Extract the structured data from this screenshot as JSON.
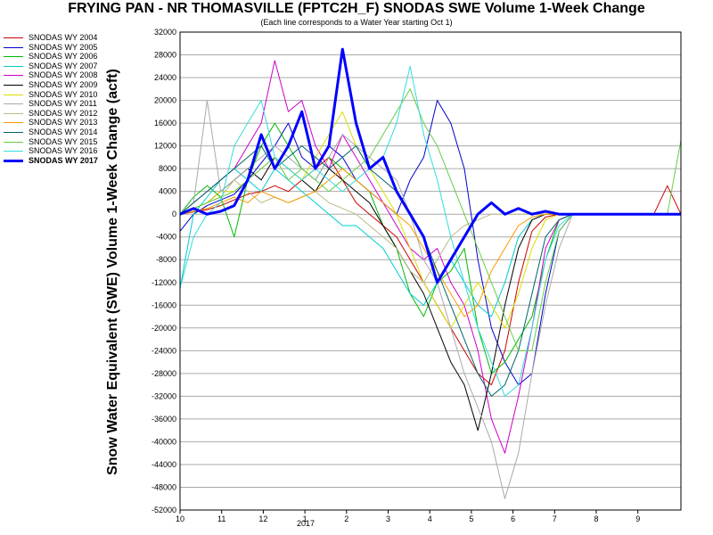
{
  "title": "FRYING PAN - NR THOMASVILLE (FPTC2H_F) SNODAS SWE Volume 1-Week Change",
  "subtitle": "(Each line corresponds to a Water Year starting Oct 1)",
  "chart_data": {
    "type": "line",
    "ylabel": "Snow Water Equivalent (SWE) Volume 1-Week Change (acft)",
    "xlabel": "",
    "ylim": [
      -52000,
      32000
    ],
    "yticks": [
      32000,
      28000,
      24000,
      20000,
      16000,
      12000,
      8000,
      4000,
      0,
      -4000,
      -8000,
      -12000,
      -16000,
      -20000,
      -24000,
      -28000,
      -32000,
      -36000,
      -40000,
      -44000,
      -48000,
      -52000
    ],
    "x_tick_labels": [
      "10",
      "11",
      "12",
      "1",
      "2",
      "3",
      "4",
      "5",
      "6",
      "7",
      "8",
      "9"
    ],
    "x_year_label": "2017",
    "grid": true,
    "legend_position": "left",
    "series": [
      {
        "name": "SNODAS WY 2004",
        "color": "#cc0000",
        "width": 1,
        "values": [
          0,
          400,
          800,
          1500,
          2500,
          3500,
          4000,
          5000,
          4000,
          6000,
          8000,
          10000,
          6000,
          2000,
          0,
          -2000,
          -4000,
          -8000,
          -12000,
          -16000,
          -20000,
          -24000,
          -28000,
          -30000,
          -24000,
          -12000,
          -3000,
          -500,
          0,
          0,
          0,
          0,
          0,
          0,
          0,
          0,
          5000,
          0
        ]
      },
      {
        "name": "SNODAS WY 2005",
        "color": "#0000cc",
        "width": 1,
        "values": [
          -3000,
          0,
          1500,
          2500,
          3500,
          6000,
          9000,
          12000,
          16000,
          10000,
          8000,
          12000,
          10000,
          6000,
          4000,
          2000,
          0,
          6000,
          10000,
          20000,
          16000,
          8000,
          -8000,
          -20000,
          -26000,
          -30000,
          -28000,
          -14000,
          -3000,
          0,
          0,
          0,
          0,
          0,
          0,
          0,
          0,
          0
        ]
      },
      {
        "name": "SNODAS WY 2006",
        "color": "#00bb00",
        "width": 1,
        "values": [
          0,
          3000,
          5000,
          3000,
          -4000,
          6000,
          12000,
          16000,
          12000,
          8000,
          6000,
          10000,
          8000,
          6000,
          4000,
          -2000,
          -6000,
          -14000,
          -18000,
          -12000,
          -10000,
          -6000,
          -20000,
          -28000,
          -26000,
          -22000,
          -18000,
          -8000,
          -1000,
          0,
          0,
          0,
          0,
          0,
          0,
          0,
          0,
          0
        ]
      },
      {
        "name": "SNODAS WY 2007",
        "color": "#00cccc",
        "width": 1,
        "values": [
          -13000,
          0,
          3000,
          6000,
          8000,
          6000,
          4000,
          8000,
          6000,
          4000,
          2000,
          0,
          -2000,
          -2000,
          -4000,
          -6000,
          -10000,
          -14000,
          -16000,
          -12000,
          -8000,
          -12000,
          -16000,
          -18000,
          -12000,
          -4000,
          -1000,
          0,
          0,
          0,
          0,
          0,
          0,
          0,
          0,
          0,
          0,
          0
        ]
      },
      {
        "name": "SNODAS WY 2008",
        "color": "#cc00cc",
        "width": 1,
        "values": [
          0,
          2000,
          4000,
          6000,
          8000,
          12000,
          16000,
          27000,
          18000,
          20000,
          12000,
          8000,
          14000,
          10000,
          6000,
          2000,
          -2000,
          -6000,
          -8000,
          -6000,
          -12000,
          -16000,
          -24000,
          -36000,
          -42000,
          -32000,
          -20000,
          -6000,
          -1000,
          0,
          0,
          0,
          0,
          0,
          0,
          0,
          0,
          0
        ]
      },
      {
        "name": "SNODAS WY 2009",
        "color": "#000000",
        "width": 1,
        "values": [
          0,
          1000,
          2000,
          4000,
          6000,
          8000,
          6000,
          10000,
          8000,
          6000,
          4000,
          8000,
          6000,
          4000,
          2000,
          -2000,
          -6000,
          -10000,
          -14000,
          -20000,
          -26000,
          -30000,
          -38000,
          -28000,
          -16000,
          -6000,
          -1000,
          0,
          0,
          0,
          0,
          0,
          0,
          0,
          0,
          0,
          0,
          0
        ]
      },
      {
        "name": "SNODAS WY 2010",
        "color": "#dddd00",
        "width": 1,
        "values": [
          0,
          1000,
          2000,
          4000,
          4000,
          6000,
          8000,
          10000,
          8000,
          6000,
          10000,
          14000,
          18000,
          12000,
          8000,
          4000,
          0,
          -6000,
          -12000,
          -16000,
          -20000,
          -16000,
          -12000,
          -16000,
          -20000,
          -14000,
          -6000,
          -1000,
          0,
          0,
          0,
          0,
          0,
          0,
          0,
          0,
          0,
          0
        ]
      },
      {
        "name": "SNODAS WY 2011",
        "color": "#aaaaaa",
        "width": 1,
        "values": [
          0,
          2000,
          20000,
          4000,
          6000,
          8000,
          10000,
          12000,
          10000,
          8000,
          6000,
          10000,
          14000,
          12000,
          10000,
          8000,
          6000,
          0,
          -8000,
          -12000,
          -20000,
          -28000,
          -34000,
          -40000,
          -50000,
          -42000,
          -28000,
          -16000,
          -6000,
          0,
          0,
          0,
          0,
          0,
          0,
          0,
          0,
          0
        ]
      },
      {
        "name": "SNODAS WY 2012",
        "color": "#bbbb88",
        "width": 1,
        "values": [
          0,
          1000,
          2000,
          3000,
          6000,
          4000,
          2000,
          3000,
          2000,
          3000,
          4000,
          2000,
          1000,
          0,
          -2000,
          -4000,
          -6000,
          -10000,
          -12000,
          -8000,
          -4000,
          -2000,
          -1000,
          0,
          0,
          0,
          0,
          0,
          0,
          0,
          0,
          0,
          0,
          0,
          0,
          0,
          0,
          0
        ]
      },
      {
        "name": "SNODAS WY 2013",
        "color": "#ff9900",
        "width": 1,
        "values": [
          0,
          500,
          1000,
          2000,
          3000,
          2000,
          4000,
          3000,
          2000,
          3000,
          4000,
          6000,
          8000,
          6000,
          4000,
          2000,
          0,
          -2000,
          -6000,
          -10000,
          -14000,
          -18000,
          -16000,
          -10000,
          -6000,
          -2000,
          -500,
          0,
          0,
          0,
          0,
          0,
          0,
          0,
          0,
          0,
          0,
          0
        ]
      },
      {
        "name": "SNODAS WY 2014",
        "color": "#006666",
        "width": 1,
        "values": [
          0,
          2000,
          4000,
          6000,
          8000,
          10000,
          12000,
          8000,
          10000,
          12000,
          10000,
          8000,
          10000,
          12000,
          8000,
          6000,
          4000,
          0,
          -4000,
          -10000,
          -16000,
          -22000,
          -28000,
          -32000,
          -30000,
          -24000,
          -14000,
          -4000,
          -1000,
          0,
          0,
          0,
          0,
          0,
          0,
          0,
          0,
          0
        ]
      },
      {
        "name": "SNODAS WY 2015",
        "color": "#66cc44",
        "width": 1,
        "values": [
          0,
          1000,
          2000,
          3000,
          4000,
          6000,
          8000,
          10000,
          6000,
          8000,
          6000,
          4000,
          6000,
          8000,
          10000,
          14000,
          18000,
          22000,
          16000,
          12000,
          6000,
          0,
          -6000,
          -12000,
          -18000,
          -24000,
          -24000,
          -12000,
          -3000,
          0,
          0,
          0,
          0,
          0,
          0,
          0,
          0,
          13000
        ]
      },
      {
        "name": "SNODAS WY 2016",
        "color": "#33dddd",
        "width": 1,
        "values": [
          -13000,
          -4000,
          0,
          2000,
          12000,
          16000,
          20000,
          10000,
          8000,
          6000,
          8000,
          6000,
          4000,
          6000,
          8000,
          10000,
          16000,
          26000,
          14000,
          6000,
          -4000,
          -12000,
          -20000,
          -26000,
          -32000,
          -30000,
          -20000,
          -8000,
          -2000,
          0,
          0,
          0,
          0,
          0,
          0,
          0,
          0,
          0
        ]
      },
      {
        "name": "SNODAS WY 2017",
        "color": "#0000ff",
        "width": 3,
        "values": [
          0,
          1000,
          0,
          500,
          1500,
          6000,
          14000,
          8000,
          12000,
          18000,
          8000,
          12000,
          29000,
          16000,
          8000,
          10000,
          4000,
          0,
          -4000,
          -12000,
          -8000,
          -4000,
          0,
          2000,
          0,
          1000,
          0,
          500,
          0,
          0,
          0,
          0,
          0,
          0,
          0,
          0,
          0,
          0
        ]
      }
    ]
  }
}
